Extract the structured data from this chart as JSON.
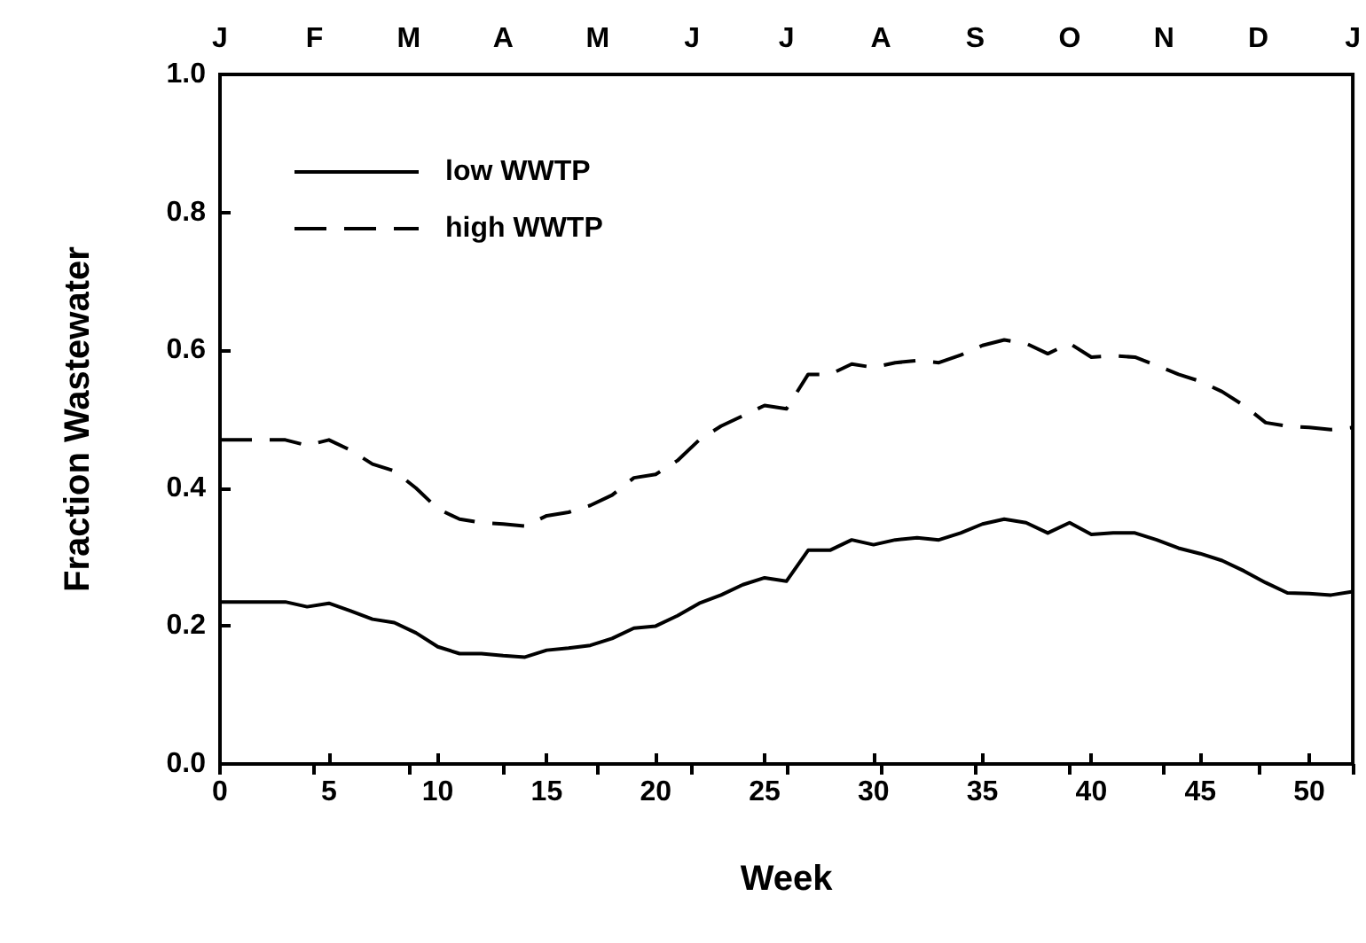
{
  "chart_data": {
    "type": "line",
    "xlabel": "Week",
    "ylabel": "Fraction Wastewater",
    "x": [
      0,
      3,
      4,
      5,
      6,
      7,
      8,
      9,
      10,
      11,
      12,
      13,
      14,
      15,
      16,
      17,
      18,
      19,
      20,
      21,
      22,
      23,
      24,
      25,
      26,
      27,
      28,
      29,
      30,
      31,
      32,
      33,
      34,
      35,
      36,
      37,
      38,
      39,
      40,
      41,
      42,
      43,
      44,
      45,
      46,
      47,
      48,
      49,
      50,
      51,
      52
    ],
    "series": [
      {
        "name": "low WWTP",
        "color": "#000000",
        "line_style": "solid",
        "values": [
          0.235,
          0.235,
          0.228,
          0.233,
          0.222,
          0.21,
          0.205,
          0.19,
          0.17,
          0.16,
          0.16,
          0.157,
          0.155,
          0.165,
          0.168,
          0.172,
          0.182,
          0.197,
          0.2,
          0.215,
          0.233,
          0.245,
          0.26,
          0.27,
          0.265,
          0.31,
          0.31,
          0.325,
          0.318,
          0.325,
          0.328,
          0.325,
          0.335,
          0.348,
          0.355,
          0.35,
          0.335,
          0.35,
          0.333,
          0.335,
          0.335,
          0.325,
          0.313,
          0.305,
          0.295,
          0.28,
          0.263,
          0.248,
          0.247,
          0.245,
          0.25
        ]
      },
      {
        "name": "high WWTP",
        "color": "#000000",
        "line_style": "dashed",
        "values": [
          0.47,
          0.47,
          0.462,
          0.47,
          0.455,
          0.435,
          0.425,
          0.4,
          0.37,
          0.355,
          0.35,
          0.348,
          0.345,
          0.36,
          0.365,
          0.375,
          0.39,
          0.415,
          0.42,
          0.44,
          0.47,
          0.49,
          0.505,
          0.52,
          0.515,
          0.565,
          0.565,
          0.58,
          0.575,
          0.582,
          0.585,
          0.582,
          0.593,
          0.607,
          0.615,
          0.61,
          0.595,
          0.61,
          0.59,
          0.592,
          0.59,
          0.578,
          0.565,
          0.555,
          0.54,
          0.52,
          0.495,
          0.49,
          0.488,
          0.485,
          0.488
        ]
      }
    ],
    "xlim": [
      0,
      52
    ],
    "xticks": [
      0,
      5,
      10,
      15,
      20,
      25,
      30,
      35,
      40,
      45,
      50
    ],
    "ylim": [
      0,
      1.0
    ],
    "yticks": [
      {
        "value": 0,
        "label": "0.0"
      },
      {
        "value": 0.2,
        "label": "0.2"
      },
      {
        "value": 0.4,
        "label": "0.4"
      },
      {
        "value": 0.6,
        "label": "0.6"
      },
      {
        "value": 0.8,
        "label": "0.8"
      },
      {
        "value": 1.0,
        "label": "1.0"
      }
    ],
    "annotations": [
      "J",
      "F",
      "M",
      "A",
      "M",
      "J",
      "J",
      "A",
      "S",
      "O",
      "N",
      "D",
      "J"
    ],
    "grid": false,
    "legend": "top left",
    "marker": "none"
  }
}
